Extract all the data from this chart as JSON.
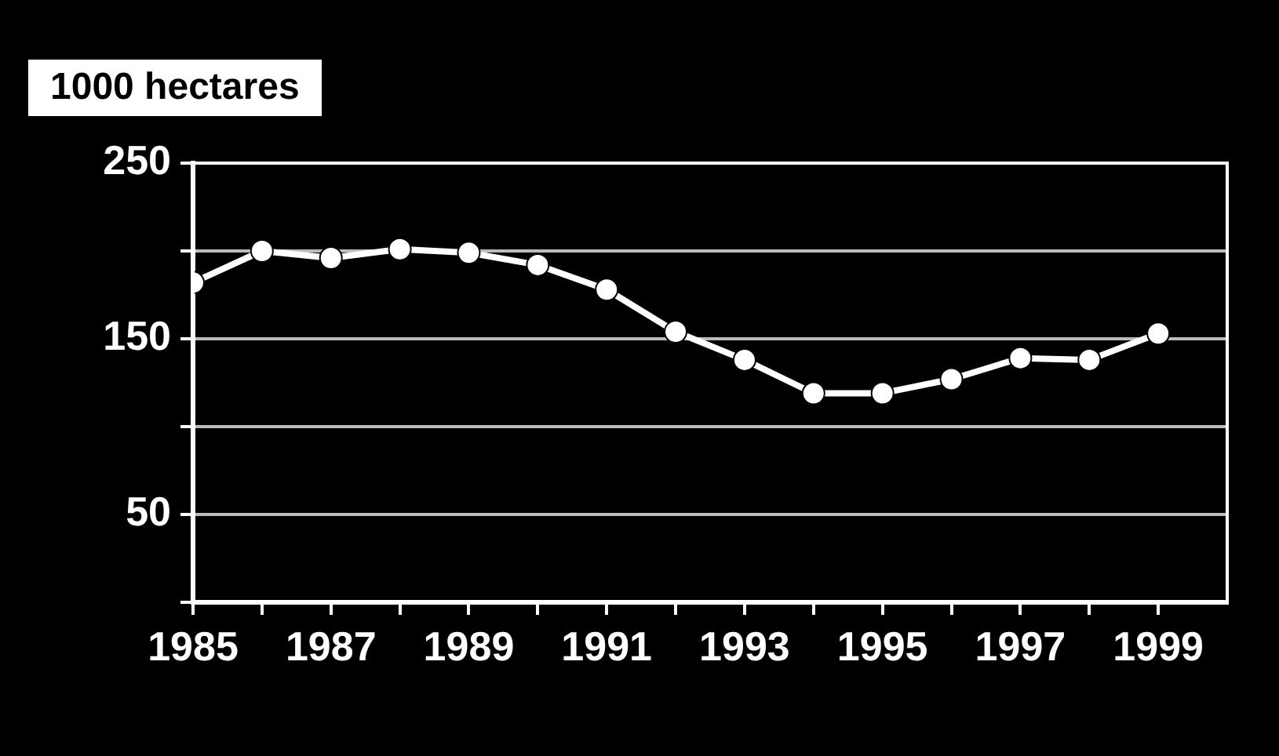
{
  "chart_data": {
    "type": "line",
    "ylabel": "1000 hectares",
    "x": [
      1985,
      1986,
      1987,
      1988,
      1989,
      1990,
      1991,
      1992,
      1993,
      1994,
      1995,
      1996,
      1997,
      1998,
      1999
    ],
    "series": [
      {
        "color": "#ffffff",
        "values": [
          182,
          200,
          196,
          201,
          199,
          192,
          178,
          154,
          138,
          119,
          119,
          127,
          139,
          138,
          153
        ]
      }
    ],
    "xlim": [
      1985,
      2000
    ],
    "xticks": [
      1985,
      {
        "value": 1986,
        "label": null
      },
      1987,
      {
        "value": 1988,
        "label": null
      },
      1989,
      {
        "value": 1990,
        "label": null
      },
      1991,
      {
        "value": 1992,
        "label": null
      },
      1993,
      {
        "value": 1994,
        "label": null
      },
      1995,
      {
        "value": 1996,
        "label": null
      },
      1997,
      {
        "value": 1998,
        "label": null
      },
      1999
    ],
    "ylim": [
      0,
      250
    ],
    "yticks": [
      {
        "value": 0,
        "label": null
      },
      50,
      {
        "value": 100,
        "label": null
      },
      150,
      {
        "value": 200,
        "label": null
      },
      250
    ],
    "grid": "y",
    "legend": false,
    "marker": "circle",
    "line_style": "solid"
  }
}
